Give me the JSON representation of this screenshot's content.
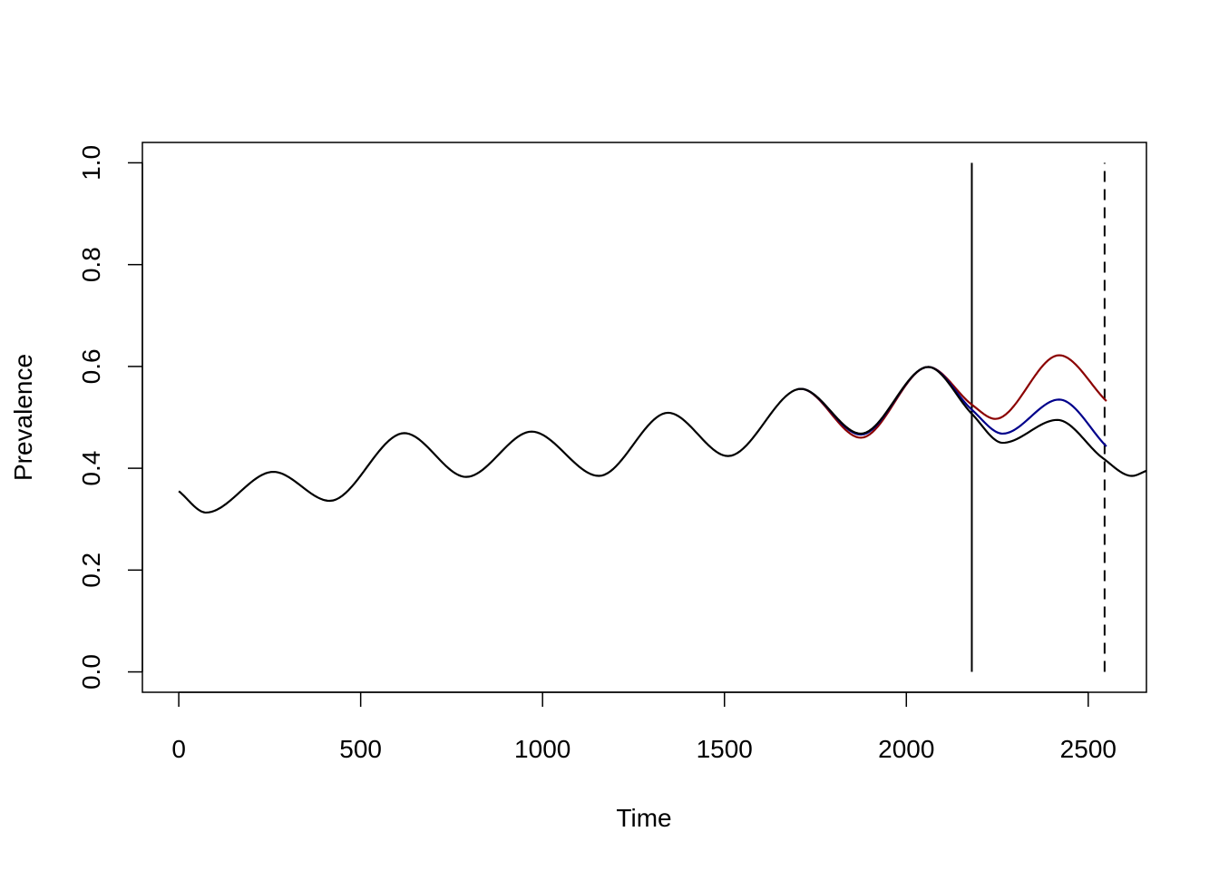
{
  "chart_data": {
    "type": "line",
    "title": "",
    "xlabel": "Time",
    "ylabel": "Prevalence",
    "xlim": [
      -100,
      2660
    ],
    "ylim": [
      -0.04,
      1.04
    ],
    "xticks": [
      0,
      500,
      1000,
      1500,
      2000,
      2500
    ],
    "yticks": [
      0.0,
      0.2,
      0.4,
      0.6,
      0.8,
      1.0
    ],
    "xtick_labels": [
      "0",
      "500",
      "1000",
      "1500",
      "2000",
      "2500"
    ],
    "ytick_labels": [
      "0.0",
      "0.2",
      "0.4",
      "0.6",
      "0.8",
      "1.0"
    ],
    "grid": false,
    "legend": "none",
    "series": [
      {
        "color": "#000000",
        "x": [
          0,
          75,
          260,
          415,
          620,
          790,
          970,
          1155,
          1345,
          1510,
          1710,
          1875,
          2060,
          2180,
          2265,
          2415,
          2540,
          2620,
          2660
        ],
        "y": [
          0.355,
          0.313,
          0.393,
          0.336,
          0.469,
          0.383,
          0.472,
          0.385,
          0.509,
          0.424,
          0.556,
          0.468,
          0.599,
          0.507,
          0.45,
          0.495,
          0.42,
          0.385,
          0.395
        ]
      },
      {
        "color": "#00008B",
        "x": [
          1700,
          1710,
          1875,
          2060,
          2180,
          2265,
          2420,
          2550
        ],
        "y": [
          0.555,
          0.556,
          0.466,
          0.599,
          0.515,
          0.468,
          0.535,
          0.443
        ]
      },
      {
        "color": "#8B0000",
        "x": [
          1700,
          1710,
          1875,
          2060,
          2180,
          2245,
          2420,
          2550
        ],
        "y": [
          0.555,
          0.556,
          0.46,
          0.599,
          0.525,
          0.497,
          0.622,
          0.532
        ]
      }
    ],
    "vlines": [
      {
        "x": 2180,
        "y0": 0.0,
        "y1": 1.0,
        "style": "solid",
        "color": "#000000"
      },
      {
        "x": 2545,
        "y0": 0.0,
        "y1": 1.0,
        "style": "dashed",
        "color": "#000000"
      }
    ]
  }
}
